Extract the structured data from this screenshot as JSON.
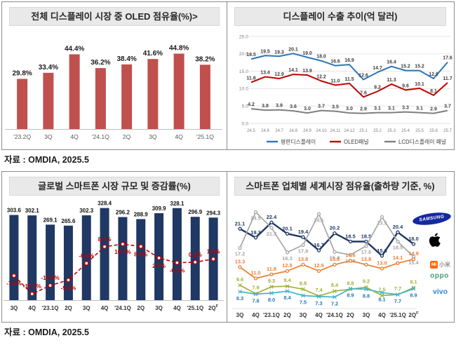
{
  "source_note": "자료 : OMDIA, 2025.5",
  "chart_data": [
    {
      "id": "oled-share",
      "type": "bar",
      "title": "전체 디스플레이 시장 중 OLED 점유율(%)>",
      "categories": [
        "'23.2Q",
        "3Q",
        "4Q",
        "'24.1Q",
        "2Q",
        "3Q",
        "4Q",
        "'25.1Q"
      ],
      "values": [
        29.8,
        33.4,
        44.4,
        36.2,
        38.4,
        41.6,
        44.8,
        38.2
      ],
      "labels": [
        "29.8%",
        "33.4%",
        "44.4%",
        "36.2%",
        "38.4%",
        "41.6%",
        "44.8%",
        "38.2%"
      ],
      "bar_color": "#c0504d",
      "ylim": [
        0,
        55
      ],
      "grid": false
    },
    {
      "id": "display-export",
      "type": "line",
      "title": "디스플레이 수출 추이(억 달러)",
      "x": [
        "24.5",
        "24.6",
        "24.7",
        "24.8",
        "24.9",
        "24.10",
        "24.11",
        "24.12",
        "25.1",
        "25.2",
        "25.3",
        "25.4",
        "25.5",
        "25.6",
        "25.7"
      ],
      "y_ticks": [
        "25.0",
        "20.0",
        "15.0",
        "10.0",
        "5.0",
        "0.0"
      ],
      "ylim": [
        0,
        25
      ],
      "grid": true,
      "legend_position": "bottom",
      "series": [
        {
          "key": "flat-panel-display",
          "name": "평판디스플레이",
          "color": "#2e75b6",
          "values": [
            18.5,
            19.5,
            19.3,
            20.1,
            19.0,
            18.0,
            16.6,
            16.9,
            12.6,
            14.7,
            16.4,
            15.2,
            15.2,
            12.9,
            17.6
          ]
        },
        {
          "key": "oled-panel",
          "name": "OLED패널",
          "color": "#c00000",
          "values": [
            11.8,
            13.4,
            12.9,
            14.1,
            13.9,
            12.2,
            11.0,
            11.5,
            7.6,
            9.2,
            11.3,
            9.6,
            10.1,
            8.1,
            11.7
          ]
        },
        {
          "key": "lcd-display-panel",
          "name": "LCD디스플레이 패널",
          "color": "#7f7f7f",
          "values": [
            4.2,
            3.8,
            3.9,
            3.6,
            3.0,
            3.7,
            3.5,
            3.0,
            2.9,
            3.1,
            3.1,
            3.3,
            3.1,
            2.9,
            3.7
          ]
        }
      ]
    },
    {
      "id": "smartphone-market",
      "type": "bar+line",
      "title": "글로벌 스마트폰 시장 규모 및 증감률(%)",
      "categories": [
        "3Q",
        "4Q",
        "'23.1Q",
        "2Q",
        "3Q",
        "4Q",
        "'24.1Q",
        "2Q",
        "3Q",
        "4Q",
        "'25.1Q",
        "2Q"
      ],
      "forecast_suffix": "F",
      "bar_series": {
        "color": "#1f3864",
        "values": [
          303.6,
          302.1,
          269.1,
          265.6,
          302.3,
          328.4,
          296.2,
          288.9,
          309.9,
          328.1,
          296.9,
          294.3
        ]
      },
      "line_series": {
        "color": "#c00000",
        "values": [
          -7.2,
          -17.2,
          -12.6,
          -9.6,
          -0.4,
          8.7,
          10.1,
          8.8,
          2.5,
          -0.1,
          0.2,
          1.9
        ],
        "labels": [
          "-7.2%",
          "-17.2%",
          "-12.6%",
          "-9.6%",
          "-0.4%",
          "8.7%",
          "10.1%",
          "8.8%",
          "2.5%",
          "-0.1%",
          "0.2%",
          "1.9%"
        ]
      },
      "grid": false
    },
    {
      "id": "vendor-share",
      "type": "line",
      "title": "스마트폰 업체별 세계시장 점유율(출하량 기준, %)",
      "categories": [
        "3Q",
        "4Q",
        "'23.1Q",
        "2Q",
        "3Q",
        "4Q",
        "'24.1Q",
        "2Q",
        "3Q",
        "4Q",
        "'25.1Q",
        "2Q"
      ],
      "forecast_suffix": "F",
      "grid": false,
      "series": [
        {
          "key": "samsung",
          "name": "Samsung",
          "color": "#1f3864",
          "logo_text": "SAMSUNG",
          "marker": "circle",
          "values": [
            21.1,
            19.3,
            22.4,
            20.1,
            19.4,
            16.7,
            20.2,
            18.5,
            18.5,
            15.6,
            20.4,
            18.0
          ]
        },
        {
          "key": "apple",
          "name": "Apple",
          "color": "#a6a6a6",
          "marker": "circle",
          "values": [
            17.2,
            24.5,
            21.3,
            16.3,
            17.8,
            24.1,
            16.4,
            15.8,
            17.6,
            23.5,
            18.5,
            15.4
          ]
        },
        {
          "key": "xiaomi",
          "name": "Xiaomi",
          "color": "#ed7d31",
          "logo_text": "MI",
          "logo_subtext": "小米",
          "marker": "circle",
          "values": [
            13.3,
            11.0,
            11.8,
            12.5,
            13.8,
            12.5,
            13.8,
            14.6,
            13.8,
            13.0,
            14.1,
            14.9
          ]
        },
        {
          "key": "oppo",
          "name": "OPPO",
          "color": "#a3b138",
          "logo_text": "oppo",
          "marker": "x",
          "values": [
            9.6,
            7.9,
            9.3,
            9.4,
            8.8,
            7.4,
            8.4,
            8.8,
            9.2,
            7.5,
            7.7,
            9.1
          ]
        },
        {
          "key": "vivo",
          "name": "vivo",
          "color": "#3fb4cc",
          "label_color": "#2e75b6",
          "logo_text": "vivo",
          "marker": "x",
          "values": [
            8.3,
            7.8,
            8.0,
            8.4,
            7.5,
            7.3,
            7.2,
            8.9,
            8.8,
            8.1,
            7.7,
            8.9
          ]
        }
      ]
    }
  ]
}
